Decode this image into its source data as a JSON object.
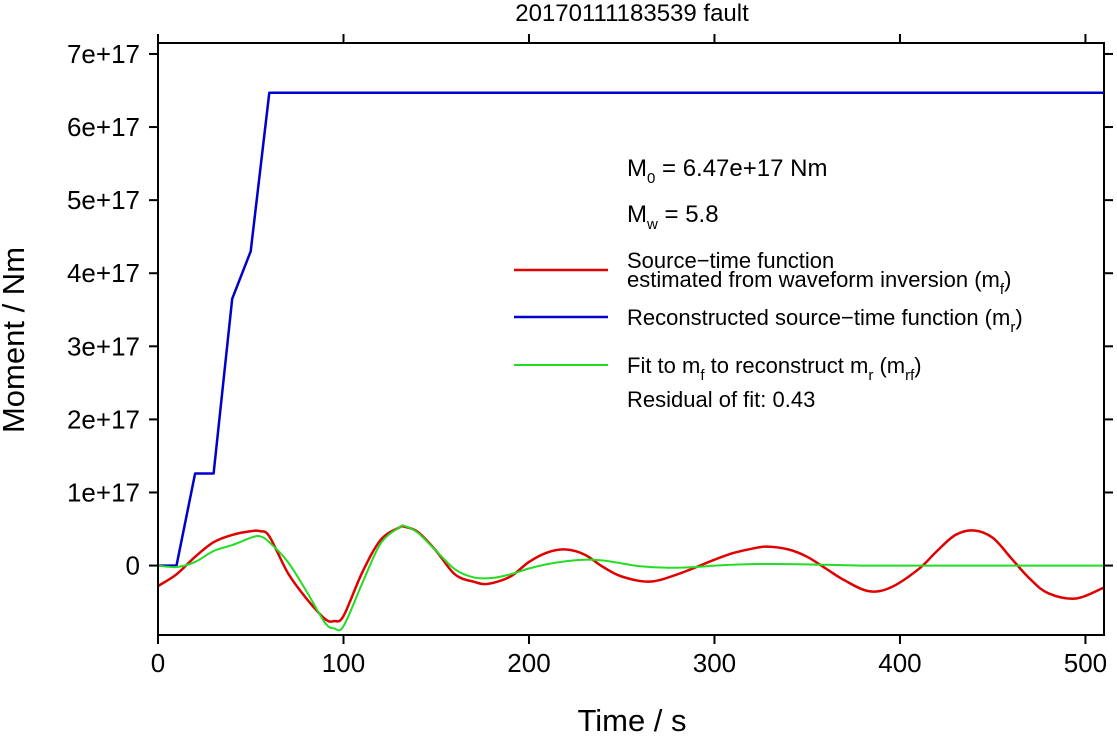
{
  "chart_data": {
    "type": "line",
    "title": "20170111183539 fault",
    "xlabel": "Time / s",
    "ylabel": "Moment / Nm",
    "xlim": [
      0,
      510
    ],
    "ylim": [
      -9.5e+16,
      7.15e+17
    ],
    "x_ticks": [
      0,
      100,
      200,
      300,
      400,
      500
    ],
    "x_tick_labels": [
      "0",
      "100",
      "200",
      "300",
      "400",
      "500"
    ],
    "y_ticks": [
      0,
      1e+17,
      2e+17,
      3e+17,
      4e+17,
      5e+17,
      6e+17,
      7e+17
    ],
    "y_tick_labels": [
      "0",
      "1e+17",
      "2e+17",
      "3e+17",
      "4e+17",
      "5e+17",
      "6e+17",
      "7e+17"
    ],
    "grid": false,
    "legend_position": "right",
    "annotations": {
      "m0": {
        "label": "M",
        "sub": "0",
        "text": " = 6.47e+17 Nm"
      },
      "mw": {
        "label": "M",
        "sub": "w",
        "text": " = 5.8"
      },
      "residual": "Residual of fit: 0.43"
    },
    "series": [
      {
        "key": "mf",
        "color": "#e00000",
        "legend": [
          {
            "t": "Source−time function",
            "s": ""
          },
          {
            "t": "estimated from waveform inversion (m",
            "s": "f",
            "after": ")"
          }
        ],
        "x": [
          0,
          10,
          20,
          30,
          40,
          50,
          55,
          60,
          70,
          80,
          90,
          95,
          100,
          110,
          120,
          130,
          133,
          140,
          150,
          160,
          170,
          178,
          190,
          200,
          210,
          220,
          230,
          240,
          250,
          265,
          280,
          300,
          310,
          320,
          328,
          340,
          350,
          360,
          370,
          383,
          395,
          410,
          420,
          430,
          440,
          450,
          460,
          470,
          480,
          495,
          510
        ],
        "y": [
          -2.8e+16,
          -1.2e+16,
          1.2e+16,
          3.2e+16,
          4.2e+16,
          4.7e+16,
          4.7e+16,
          4e+16,
          -1e+16,
          -4.5e+16,
          -7.3e+16,
          -7.6e+16,
          -6.9e+16,
          -1e+16,
          3.5e+16,
          5.2e+16,
          5.3e+16,
          4.6e+16,
          2e+16,
          -1.2e+16,
          -2.2e+16,
          -2.5e+16,
          -1.5e+16,
          5000000000000000.0,
          1.8e+16,
          2.2e+16,
          1.5e+16,
          -2000000000000000.0,
          -1.5e+16,
          -2.2e+16,
          -1.2e+16,
          8000000000000000.0,
          1.7e+16,
          2.3e+16,
          2.6e+16,
          2.2e+16,
          1.2e+16,
          -4000000000000000.0,
          -2e+16,
          -3.5e+16,
          -3e+16,
          -5000000000000000.0,
          2e+16,
          4.2e+16,
          4.8e+16,
          3.8e+16,
          1e+16,
          -1.8e+16,
          -3.8e+16,
          -4.5e+16,
          -3e+16
        ]
      },
      {
        "key": "mr",
        "color": "#0000cc",
        "legend": [
          {
            "t": "Reconstructed source−time function (m",
            "s": "r",
            "after": ")"
          }
        ],
        "x": [
          0,
          10,
          20,
          30,
          40,
          50,
          60,
          510
        ],
        "y": [
          0,
          0,
          1.26e+17,
          1.26e+17,
          3.65e+17,
          4.3e+17,
          6.47e+17,
          6.47e+17
        ]
      },
      {
        "key": "mrf",
        "color": "#22dd22",
        "legend": [
          {
            "t": "Fit to m",
            "s": "f",
            "after": " to reconstruct m",
            "s2": "r",
            "after2": " (m",
            "s3": "rf",
            "after3": ")"
          }
        ],
        "x": [
          0,
          10,
          20,
          30,
          40,
          50,
          55,
          60,
          70,
          80,
          90,
          95,
          100,
          110,
          120,
          130,
          133,
          140,
          150,
          160,
          170,
          180,
          190,
          200,
          210,
          220,
          230,
          240,
          250,
          260,
          275,
          290,
          300,
          320,
          340,
          360,
          380,
          400,
          420,
          440,
          460,
          480,
          500,
          510
        ],
        "y": [
          0,
          -2000000000000000.0,
          5000000000000000.0,
          2e+16,
          2.8e+16,
          3.8e+16,
          4e+16,
          3.2e+16,
          5000000000000000.0,
          -3.5e+16,
          -7.8e+16,
          -8.6e+16,
          -8.3e+16,
          -2.5e+16,
          3e+16,
          5.2e+16,
          5.4e+16,
          4.5e+16,
          2e+16,
          -5000000000000000.0,
          -1.6e+16,
          -1.7e+16,
          -1.2e+16,
          -4000000000000000.0,
          2000000000000000.0,
          6000000000000000.0,
          8000000000000000.0,
          7000000000000000.0,
          3000000000000000.0,
          -1000000000000000.0,
          -3000000000000000.0,
          -2000000000000000.0,
          0,
          2000000000000000.0,
          2000000000000000.0,
          1000000000000000.0,
          0,
          0,
          0,
          0,
          0,
          0,
          0,
          0
        ]
      }
    ]
  }
}
